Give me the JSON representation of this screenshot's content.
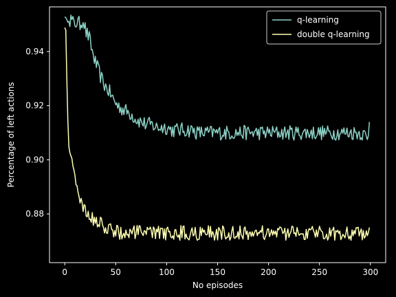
{
  "chart_data": {
    "type": "line",
    "title": "",
    "xlabel": "No episodes",
    "ylabel": "Percentage of left actions",
    "xlim": [
      -15,
      315
    ],
    "ylim": [
      0.862,
      0.9565
    ],
    "xticks": [
      0,
      50,
      100,
      150,
      200,
      250,
      300
    ],
    "yticks": [
      0.88,
      0.9,
      0.92,
      0.94
    ],
    "xtick_labels": [
      "0",
      "50",
      "100",
      "150",
      "200",
      "250",
      "300"
    ],
    "ytick_labels": [
      "0.88",
      "0.90",
      "0.92",
      "0.94"
    ],
    "legend": {
      "position": "top-right"
    },
    "background": "#000000",
    "series": [
      {
        "name": "q-learning",
        "color": "#8dd3c7",
        "points": [
          [
            0,
            0.953
          ],
          [
            3,
            0.951
          ],
          [
            6,
            0.952
          ],
          [
            9,
            0.95
          ],
          [
            12,
            0.951
          ],
          [
            15,
            0.95
          ],
          [
            18,
            0.952
          ],
          [
            21,
            0.947
          ],
          [
            24,
            0.945
          ],
          [
            27,
            0.94
          ],
          [
            30,
            0.936
          ],
          [
            33,
            0.933
          ],
          [
            36,
            0.93
          ],
          [
            40,
            0.927
          ],
          [
            44,
            0.925
          ],
          [
            48,
            0.922
          ],
          [
            52,
            0.92
          ],
          [
            56,
            0.919
          ],
          [
            60,
            0.918
          ],
          [
            65,
            0.917
          ],
          [
            70,
            0.915
          ],
          [
            75,
            0.914
          ],
          [
            80,
            0.913
          ],
          [
            85,
            0.913
          ],
          [
            90,
            0.912
          ],
          [
            95,
            0.912
          ],
          [
            100,
            0.912
          ],
          [
            105,
            0.911
          ],
          [
            110,
            0.911
          ],
          [
            115,
            0.911
          ],
          [
            120,
            0.911
          ],
          [
            125,
            0.911
          ],
          [
            130,
            0.91
          ],
          [
            135,
            0.91
          ],
          [
            140,
            0.91
          ],
          [
            145,
            0.91
          ],
          [
            150,
            0.91
          ],
          [
            155,
            0.91
          ],
          [
            160,
            0.91
          ],
          [
            165,
            0.91
          ],
          [
            170,
            0.91
          ],
          [
            175,
            0.91
          ],
          [
            180,
            0.91
          ],
          [
            185,
            0.91
          ],
          [
            190,
            0.91
          ],
          [
            195,
            0.91
          ],
          [
            200,
            0.91
          ],
          [
            205,
            0.91
          ],
          [
            210,
            0.91
          ],
          [
            215,
            0.91
          ],
          [
            220,
            0.91
          ],
          [
            225,
            0.91
          ],
          [
            230,
            0.91
          ],
          [
            235,
            0.91
          ],
          [
            240,
            0.91
          ],
          [
            245,
            0.91
          ],
          [
            250,
            0.91
          ],
          [
            255,
            0.91
          ],
          [
            260,
            0.91
          ],
          [
            265,
            0.91
          ],
          [
            270,
            0.91
          ],
          [
            275,
            0.91
          ],
          [
            280,
            0.91
          ],
          [
            285,
            0.91
          ],
          [
            290,
            0.91
          ],
          [
            295,
            0.909
          ],
          [
            297,
            0.907
          ],
          [
            299,
            0.914
          ]
        ]
      },
      {
        "name": "double q-learning",
        "color": "#ffffb3",
        "points": [
          [
            0,
            0.949
          ],
          [
            1,
            0.948
          ],
          [
            2,
            0.93
          ],
          [
            3,
            0.915
          ],
          [
            4,
            0.905
          ],
          [
            5,
            0.901
          ],
          [
            7,
            0.899
          ],
          [
            9,
            0.896
          ],
          [
            11,
            0.893
          ],
          [
            13,
            0.889
          ],
          [
            15,
            0.885
          ],
          [
            17,
            0.883
          ],
          [
            19,
            0.881
          ],
          [
            22,
            0.88
          ],
          [
            25,
            0.879
          ],
          [
            28,
            0.878
          ],
          [
            32,
            0.877
          ],
          [
            36,
            0.876
          ],
          [
            40,
            0.875
          ],
          [
            45,
            0.874
          ],
          [
            50,
            0.874
          ],
          [
            55,
            0.873
          ],
          [
            60,
            0.873
          ],
          [
            65,
            0.873
          ],
          [
            70,
            0.873
          ],
          [
            75,
            0.873
          ],
          [
            80,
            0.873
          ],
          [
            85,
            0.873
          ],
          [
            90,
            0.873
          ],
          [
            95,
            0.873
          ],
          [
            100,
            0.873
          ],
          [
            105,
            0.873
          ],
          [
            110,
            0.873
          ],
          [
            115,
            0.873
          ],
          [
            120,
            0.873
          ],
          [
            125,
            0.873
          ],
          [
            130,
            0.873
          ],
          [
            135,
            0.873
          ],
          [
            140,
            0.873
          ],
          [
            145,
            0.873
          ],
          [
            150,
            0.873
          ],
          [
            155,
            0.873
          ],
          [
            160,
            0.873
          ],
          [
            165,
            0.873
          ],
          [
            170,
            0.873
          ],
          [
            175,
            0.873
          ],
          [
            180,
            0.873
          ],
          [
            185,
            0.873
          ],
          [
            190,
            0.873
          ],
          [
            195,
            0.873
          ],
          [
            200,
            0.873
          ],
          [
            205,
            0.873
          ],
          [
            210,
            0.873
          ],
          [
            215,
            0.873
          ],
          [
            220,
            0.873
          ],
          [
            225,
            0.873
          ],
          [
            230,
            0.873
          ],
          [
            235,
            0.873
          ],
          [
            240,
            0.873
          ],
          [
            245,
            0.873
          ],
          [
            250,
            0.873
          ],
          [
            255,
            0.873
          ],
          [
            260,
            0.873
          ],
          [
            265,
            0.873
          ],
          [
            270,
            0.873
          ],
          [
            275,
            0.873
          ],
          [
            280,
            0.873
          ],
          [
            285,
            0.873
          ],
          [
            290,
            0.873
          ],
          [
            295,
            0.873
          ],
          [
            297,
            0.871
          ],
          [
            299,
            0.875
          ]
        ]
      }
    ]
  }
}
